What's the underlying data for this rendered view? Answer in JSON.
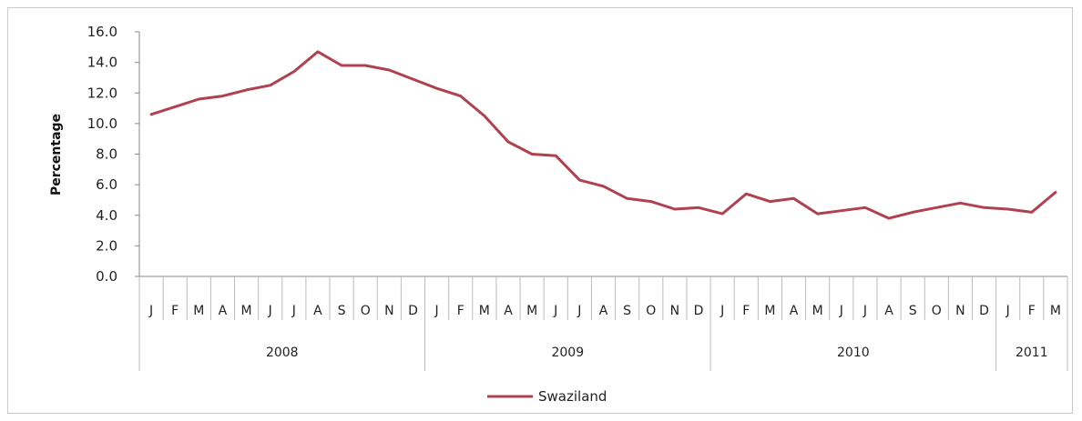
{
  "chart_data": {
    "type": "line",
    "ylabel": "Percentage",
    "ylim": [
      0,
      16
    ],
    "yticks": [
      "0.0",
      "2.0",
      "4.0",
      "6.0",
      "8.0",
      "10.0",
      "12.0",
      "14.0",
      "16.0"
    ],
    "grid": false,
    "legend_position": "bottom",
    "months": [
      "J",
      "F",
      "M",
      "A",
      "M",
      "J",
      "J",
      "A",
      "S",
      "O",
      "N",
      "D",
      "J",
      "F",
      "M",
      "A",
      "M",
      "J",
      "J",
      "A",
      "S",
      "O",
      "N",
      "D",
      "J",
      "F",
      "M",
      "A",
      "M",
      "J",
      "J",
      "A",
      "S",
      "O",
      "N",
      "D",
      "J",
      "F",
      "M"
    ],
    "years": [
      {
        "label": "2008",
        "start": 0,
        "count": 12
      },
      {
        "label": "2009",
        "start": 12,
        "count": 12
      },
      {
        "label": "2010",
        "start": 24,
        "count": 12
      },
      {
        "label": "2011",
        "start": 36,
        "count": 3
      }
    ],
    "series": [
      {
        "name": "Swaziland",
        "color": "#b0424f",
        "values": [
          10.6,
          11.1,
          11.6,
          11.8,
          12.2,
          12.5,
          13.4,
          14.7,
          13.8,
          13.8,
          13.5,
          12.9,
          12.3,
          11.8,
          10.5,
          8.8,
          8.0,
          7.9,
          6.3,
          5.9,
          5.1,
          4.9,
          4.4,
          4.5,
          4.1,
          5.4,
          4.9,
          5.1,
          4.1,
          4.3,
          4.5,
          3.8,
          4.2,
          4.5,
          4.8,
          4.5,
          4.4,
          4.2,
          5.5
        ]
      }
    ]
  }
}
